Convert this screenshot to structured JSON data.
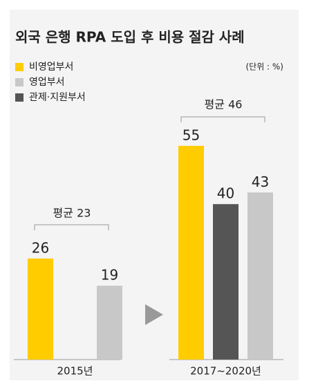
{
  "chart_data": {
    "type": "bar",
    "title": "외국 은행 RPA 도입 후 비용 절감 사례",
    "unit_label": "(단위 : %)",
    "categories": [
      "2015년",
      "2017~2020년"
    ],
    "series": [
      {
        "name": "비영업부서",
        "color": "#ffcc00",
        "values": [
          26,
          55
        ]
      },
      {
        "name": "영업부서",
        "color": "#c8c8c8",
        "values": [
          19,
          43
        ]
      },
      {
        "name": "관제·지원부서",
        "color": "#555555",
        "values": [
          null,
          40
        ]
      }
    ],
    "annotations": [
      "평균 23",
      "평균 46"
    ]
  }
}
